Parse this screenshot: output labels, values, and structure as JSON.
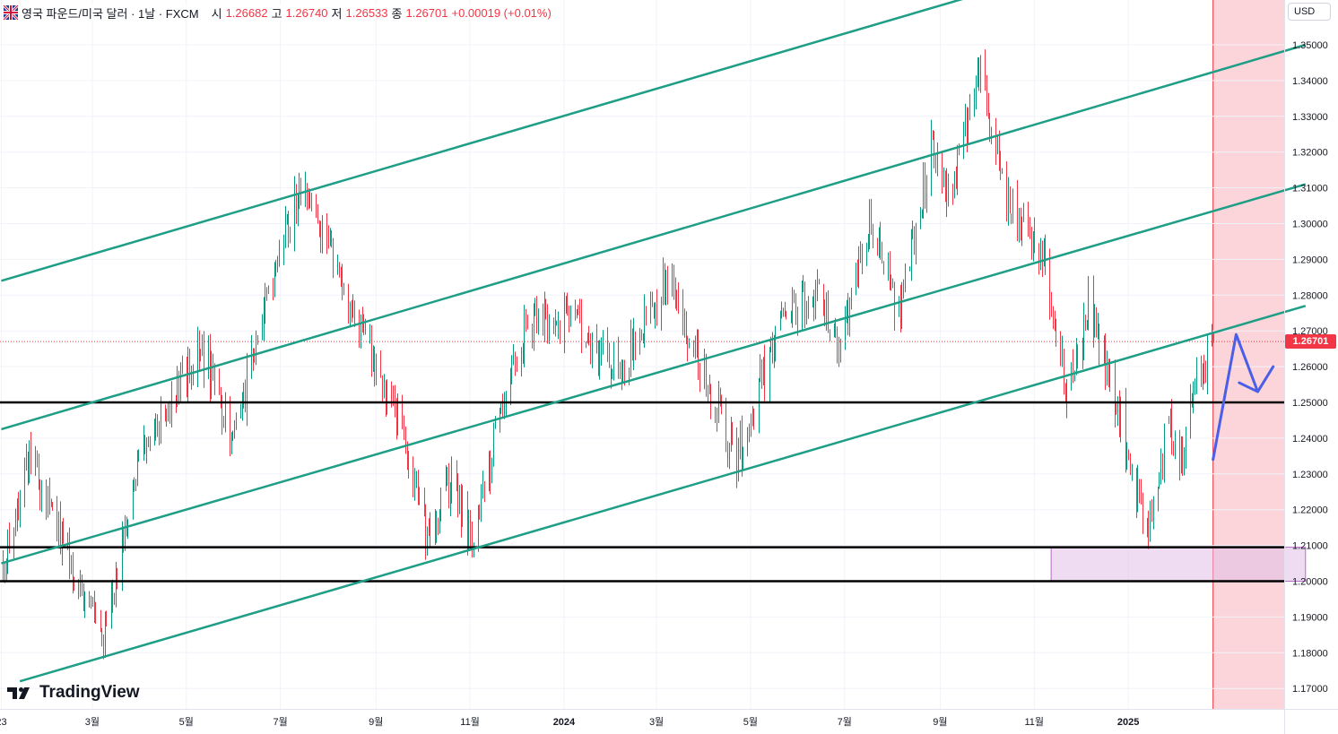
{
  "header": {
    "symbol": "영국 파운드/미국 달러 · 1날 · FXCM",
    "open_label": "시",
    "open": "1.26682",
    "high_label": "고",
    "high": "1.26740",
    "low_label": "저",
    "low": "1.26533",
    "close_label": "종",
    "close": "1.26701",
    "change": "+0.00019 (+0.01%)"
  },
  "currency_button": "USD",
  "current_price_tag": "1.26701",
  "logo_text": "TradingView",
  "colors": {
    "up": "#089981",
    "down": "#f23645",
    "channel": "#1e9e86",
    "level": "#000000",
    "projection": "#4a5ee8",
    "zone": "#e1bee7",
    "future": "#fbd5d9"
  },
  "chart_data": {
    "type": "candlestick",
    "title": "영국 파운드/미국 달러 · 1날 · FXCM",
    "ylim": [
      1.163,
      1.362
    ],
    "y_ticks": [
      1.17,
      1.18,
      1.19,
      1.2,
      1.21,
      1.22,
      1.23,
      1.24,
      1.25,
      1.26,
      1.27,
      1.28,
      1.29,
      1.3,
      1.31,
      1.32,
      1.33,
      1.34,
      1.35
    ],
    "y_tick_labels": [
      "1.17000",
      "1.18000",
      "1.19000",
      "1.20000",
      "1.21000",
      "1.22000",
      "1.23000",
      "1.24000",
      "1.25000",
      "1.26000",
      "1.27000",
      "1.28000",
      "1.29000",
      "1.30000",
      "1.31000",
      "1.32000",
      "1.33000",
      "1.34000",
      "1.35000"
    ],
    "x_ticks": [
      {
        "label": "23",
        "date": "2023-01-01"
      },
      {
        "label": "3월",
        "date": "2023-03-01"
      },
      {
        "label": "5월",
        "date": "2023-05-01"
      },
      {
        "label": "7월",
        "date": "2023-07-01"
      },
      {
        "label": "9월",
        "date": "2023-09-01"
      },
      {
        "label": "11월",
        "date": "2023-11-01"
      },
      {
        "label": "2024",
        "date": "2024-01-01"
      },
      {
        "label": "3월",
        "date": "2024-03-01"
      },
      {
        "label": "5월",
        "date": "2024-05-01"
      },
      {
        "label": "7월",
        "date": "2024-07-01"
      },
      {
        "label": "9월",
        "date": "2024-09-01"
      },
      {
        "label": "11월",
        "date": "2024-11-01"
      },
      {
        "label": "2025",
        "date": "2025-01-01"
      }
    ],
    "price_path": [
      [
        "2023-01-02",
        1.205
      ],
      [
        "2023-01-20",
        1.235
      ],
      [
        "2023-02-10",
        1.21
      ],
      [
        "2023-03-08",
        1.185
      ],
      [
        "2023-03-31",
        1.235
      ],
      [
        "2023-05-10",
        1.265
      ],
      [
        "2023-05-31",
        1.24
      ],
      [
        "2023-07-14",
        1.312
      ],
      [
        "2023-08-22",
        1.27
      ],
      [
        "2023-09-20",
        1.24
      ],
      [
        "2023-10-04",
        1.21
      ],
      [
        "2023-10-20",
        1.23
      ],
      [
        "2023-11-03",
        1.21
      ],
      [
        "2023-11-28",
        1.262
      ],
      [
        "2023-12-14",
        1.275
      ],
      [
        "2024-01-15",
        1.27
      ],
      [
        "2024-02-05",
        1.257
      ],
      [
        "2024-03-08",
        1.286
      ],
      [
        "2024-04-22",
        1.234
      ],
      [
        "2024-05-20",
        1.272
      ],
      [
        "2024-06-12",
        1.282
      ],
      [
        "2024-06-28",
        1.265
      ],
      [
        "2024-07-17",
        1.302
      ],
      [
        "2024-08-05",
        1.275
      ],
      [
        "2024-08-27",
        1.322
      ],
      [
        "2024-09-06",
        1.307
      ],
      [
        "2024-09-26",
        1.343
      ],
      [
        "2024-10-15",
        1.305
      ],
      [
        "2024-11-08",
        1.29
      ],
      [
        "2024-11-22",
        1.252
      ],
      [
        "2024-12-06",
        1.278
      ],
      [
        "2024-12-23",
        1.252
      ],
      [
        "2025-01-13",
        1.212
      ],
      [
        "2025-01-27",
        1.245
      ],
      [
        "2025-02-03",
        1.235
      ],
      [
        "2025-02-17",
        1.26
      ],
      [
        "2025-02-25",
        1.267
      ]
    ],
    "horizontal_levels": [
      1.25,
      1.2095,
      1.2
    ],
    "channel_lines": [
      {
        "from": [
          "2023-01-01",
          1.284
        ],
        "to": [
          "2024-09-17",
          1.363
        ]
      },
      {
        "from": [
          "2023-01-01",
          1.2425
        ],
        "to": [
          "2025-04-26",
          1.35
        ]
      },
      {
        "from": [
          "2023-01-01",
          1.205
        ],
        "to": [
          "2025-04-26",
          1.311
        ]
      },
      {
        "from": [
          "2023-01-13",
          1.172
        ],
        "to": [
          "2025-04-26",
          1.277
        ]
      }
    ],
    "projection_path": [
      [
        "2025-02-25",
        1.234
      ],
      [
        "2025-03-12",
        1.269
      ],
      [
        "2025-03-26",
        1.253
      ],
      [
        "2025-03-14",
        1.2555
      ],
      [
        "2025-03-26",
        1.253
      ],
      [
        "2025-04-05",
        1.26
      ]
    ],
    "demand_zone": {
      "from": "2024-11-12",
      "to": "2025-04-26",
      "low": 1.2,
      "high": 1.2095
    },
    "future_area_start": "2025-02-25",
    "last_price": 1.26701
  }
}
